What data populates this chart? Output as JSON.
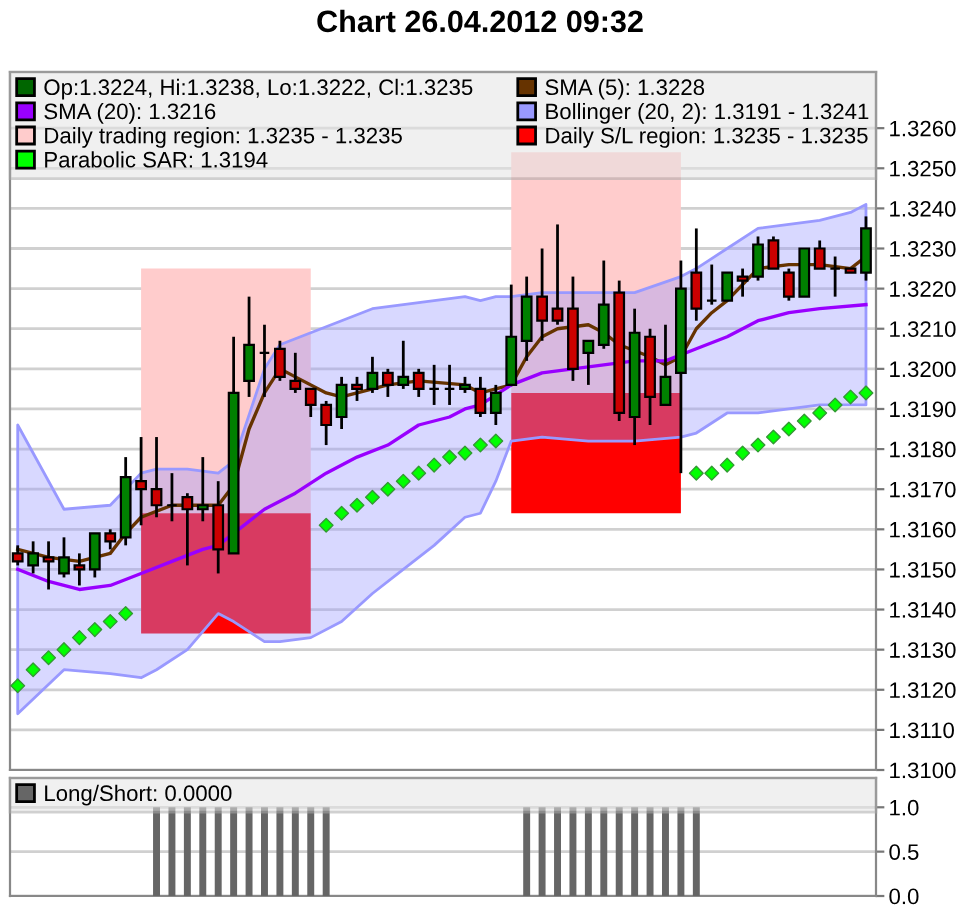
{
  "chart_data": [
    {
      "type": "candlestick",
      "title": "Chart 26.04.2012 09:32",
      "categories": [
        null,
        null,
        null,
        null,
        null,
        null,
        null,
        null,
        null,
        null,
        null,
        null,
        null,
        null,
        null,
        null,
        null,
        null,
        null,
        null,
        null,
        null,
        null,
        null,
        null,
        null,
        null,
        null,
        null,
        null,
        null,
        null,
        null,
        null,
        null,
        null,
        null,
        null,
        null,
        null,
        null,
        null,
        null,
        null,
        null,
        null,
        null,
        null,
        null,
        null,
        null,
        null,
        null,
        null,
        null,
        null
      ],
      "series": [
        {
          "name": "Op:1.3224, Hi:1.3238, Lo:1.3222, Cl:1.3235",
          "type": "candlestick",
          "color": "#006600",
          "colors": [
            "#cc0000",
            "#008000",
            "#cc0000",
            "#008000",
            "#cc0000",
            "#008000",
            "#cc0000",
            "#008000",
            "#cc0000",
            "#cc0000",
            "#000000",
            "#cc0000",
            "#008000",
            "#cc0000",
            "#008000",
            "#008000",
            "#000000",
            "#cc0000",
            "#cc0000",
            "#cc0000",
            "#cc0000",
            "#008000",
            "#cc0000",
            "#008000",
            "#cc0000",
            "#008000",
            "#cc0000",
            "#000000",
            "#000000",
            "#008000",
            "#cc0000",
            "#008000",
            "#008000",
            "#008000",
            "#cc0000",
            "#cc0000",
            "#cc0000",
            "#008000",
            "#008000",
            "#cc0000",
            "#008000",
            "#cc0000",
            "#008000",
            "#008000",
            "#cc0000",
            "#000000",
            "#008000",
            "#cc0000",
            "#008000",
            "#cc0000",
            "#cc0000",
            "#008000",
            "#cc0000",
            "#000000",
            "#cc0000",
            "#008000"
          ],
          "ohlc": [
            [
              1.3154,
              1.3156,
              1.3151,
              1.3152
            ],
            [
              1.3151,
              1.3157,
              1.3149,
              1.3154
            ],
            [
              1.3153,
              1.3157,
              1.3145,
              1.3152
            ],
            [
              1.3149,
              1.3158,
              1.3148,
              1.3153
            ],
            [
              1.3151,
              1.3154,
              1.3146,
              1.315
            ],
            [
              1.315,
              1.3159,
              1.3148,
              1.3159
            ],
            [
              1.3159,
              1.316,
              1.3155,
              1.3157
            ],
            [
              1.3158,
              1.3178,
              1.3156,
              1.3173
            ],
            [
              1.3172,
              1.3183,
              1.3161,
              1.317
            ],
            [
              1.317,
              1.3183,
              1.3163,
              1.3166
            ],
            [
              1.3166,
              1.3174,
              1.3162,
              1.3166
            ],
            [
              1.3168,
              1.3169,
              1.3151,
              1.3165
            ],
            [
              1.3165,
              1.3178,
              1.3162,
              1.3166
            ],
            [
              1.3166,
              1.3172,
              1.3149,
              1.3155
            ],
            [
              1.3154,
              1.3208,
              1.3154,
              1.3194
            ],
            [
              1.3197,
              1.3218,
              1.3193,
              1.3206
            ],
            [
              1.3204,
              1.3211,
              1.3193,
              1.3204
            ],
            [
              1.3205,
              1.3207,
              1.3197,
              1.3198
            ],
            [
              1.3197,
              1.3204,
              1.3194,
              1.3195
            ],
            [
              1.3195,
              1.3195,
              1.3188,
              1.3191
            ],
            [
              1.3191,
              1.3192,
              1.3181,
              1.3186
            ],
            [
              1.3188,
              1.3198,
              1.3185,
              1.3196
            ],
            [
              1.3196,
              1.3198,
              1.3192,
              1.3195
            ],
            [
              1.3195,
              1.3203,
              1.3194,
              1.3199
            ],
            [
              1.3199,
              1.32,
              1.3193,
              1.3196
            ],
            [
              1.3196,
              1.3207,
              1.3195,
              1.3198
            ],
            [
              1.3199,
              1.32,
              1.3193,
              1.3195
            ],
            [
              1.3195,
              1.3201,
              1.3191,
              1.3195
            ],
            [
              1.3195,
              1.3201,
              1.3191,
              1.3195
            ],
            [
              1.3195,
              1.3198,
              1.3194,
              1.3196
            ],
            [
              1.3195,
              1.3198,
              1.3188,
              1.3189
            ],
            [
              1.3189,
              1.3196,
              1.3186,
              1.3194
            ],
            [
              1.3196,
              1.3221,
              1.3196,
              1.3208
            ],
            [
              1.3207,
              1.3223,
              1.3202,
              1.3218
            ],
            [
              1.3218,
              1.323,
              1.3207,
              1.3212
            ],
            [
              1.3215,
              1.3236,
              1.3211,
              1.3212
            ],
            [
              1.3215,
              1.3223,
              1.3197,
              1.32
            ],
            [
              1.3204,
              1.3207,
              1.3196,
              1.3207
            ],
            [
              1.3206,
              1.3227,
              1.3205,
              1.3216
            ],
            [
              1.3219,
              1.3222,
              1.3187,
              1.3189
            ],
            [
              1.3188,
              1.3215,
              1.3181,
              1.3209
            ],
            [
              1.3208,
              1.321,
              1.3186,
              1.3193
            ],
            [
              1.3191,
              1.3211,
              1.3191,
              1.3198
            ],
            [
              1.3199,
              1.3227,
              1.3174,
              1.322
            ],
            [
              1.3224,
              1.3235,
              1.3212,
              1.3215
            ],
            [
              1.3217,
              1.3226,
              1.3216,
              1.3217
            ],
            [
              1.3217,
              1.3224,
              1.3217,
              1.3224
            ],
            [
              1.3223,
              1.3225,
              1.3218,
              1.3222
            ],
            [
              1.3223,
              1.3233,
              1.3222,
              1.3231
            ],
            [
              1.3232,
              1.3233,
              1.3225,
              1.3225
            ],
            [
              1.3224,
              1.3225,
              1.3217,
              1.3218
            ],
            [
              1.3218,
              1.323,
              1.3218,
              1.323
            ],
            [
              1.323,
              1.3232,
              1.3225,
              1.3225
            ],
            [
              1.3225,
              1.3228,
              1.3218,
              1.3225
            ],
            [
              1.3225,
              1.3225,
              1.3224,
              1.3224
            ],
            [
              1.3224,
              1.3238,
              1.3222,
              1.3235
            ]
          ]
        },
        {
          "name": "SMA (5): 1.3228",
          "type": "line",
          "color": "#663300",
          "values": [
            1.3155,
            null,
            1.3153,
            null,
            1.3152,
            null,
            1.3154,
            1.3159,
            1.3163,
            null,
            1.3166,
            null,
            1.3166,
            1.3166,
            1.3171,
            1.3185,
            1.3194,
            1.32,
            1.3198,
            null,
            1.3194,
            1.3193,
            null,
            1.3195,
            1.3196,
            null,
            1.3197,
            null,
            null,
            1.3196,
            1.3194,
            1.3195,
            1.3196,
            1.3203,
            1.3208,
            1.321,
            null,
            1.3211,
            1.3209,
            1.3206,
            null,
            1.3203,
            1.3201,
            1.3203,
            1.321,
            1.3214,
            1.3217,
            null,
            1.3225,
            null,
            1.3226,
            null,
            1.3226,
            null,
            1.3225,
            1.3228
          ]
        },
        {
          "name": "SMA (20): 1.3216",
          "type": "line",
          "color": "#9900ff",
          "values": [
            1.315,
            null,
            1.3147,
            null,
            1.3145,
            null,
            1.3146,
            null,
            1.3149,
            null,
            1.3152,
            null,
            1.3155,
            1.3156,
            1.3159,
            null,
            1.3165,
            null,
            1.3169,
            null,
            1.3174,
            null,
            1.3178,
            null,
            1.3181,
            null,
            1.3186,
            null,
            1.3188,
            1.319,
            1.3191,
            null,
            1.3196,
            null,
            1.3199,
            null,
            1.32,
            null,
            1.3201,
            null,
            1.3202,
            null,
            1.3202,
            null,
            1.3205,
            null,
            1.3208,
            null,
            1.3212,
            null,
            1.3214,
            null,
            1.3215,
            null,
            null,
            1.3216
          ]
        },
        {
          "name": "Bollinger (20, 2): 1.3191 - 1.3241",
          "type": "area",
          "color": "#9999ff",
          "values": [
            null,
            null,
            null,
            null,
            null,
            null,
            null,
            null,
            null,
            null,
            null,
            null,
            null,
            null,
            null,
            null,
            null,
            null,
            null,
            null,
            null,
            null,
            null,
            null,
            null,
            null,
            null,
            null,
            null,
            null,
            null,
            null,
            null,
            null,
            null,
            null,
            null,
            null,
            null,
            null,
            null,
            null,
            null,
            null,
            null,
            null,
            null,
            null,
            null,
            null,
            null,
            null,
            null,
            null,
            null,
            null
          ],
          "upper": [
            1.3186,
            null,
            null,
            1.3165,
            null,
            null,
            1.3166,
            null,
            1.3174,
            1.3175,
            null,
            1.3175,
            null,
            1.3174,
            1.3177,
            null,
            1.32,
            1.3206,
            null,
            1.3209,
            null,
            1.3212,
            null,
            1.3215,
            null,
            1.3216,
            null,
            1.3217,
            null,
            1.3218,
            1.3217,
            1.3218,
            1.3218,
            null,
            1.3219,
            null,
            null,
            1.3219,
            null,
            null,
            1.3219,
            null,
            null,
            1.3223,
            1.3225,
            null,
            1.323,
            null,
            1.3235,
            null,
            1.3236,
            null,
            1.3237,
            null,
            1.3239,
            1.3241
          ],
          "lower": [
            1.3114,
            null,
            null,
            1.3125,
            null,
            null,
            1.3124,
            null,
            1.3123,
            1.3125,
            null,
            1.313,
            null,
            1.3139,
            1.3137,
            null,
            1.3132,
            1.3132,
            null,
            1.3133,
            null,
            1.3137,
            null,
            1.3144,
            null,
            1.315,
            null,
            1.3156,
            null,
            1.3163,
            1.3164,
            1.3172,
            1.3182,
            null,
            1.3183,
            null,
            null,
            1.3182,
            null,
            null,
            1.3182,
            null,
            null,
            1.3183,
            1.3184,
            null,
            1.3189,
            null,
            1.3189,
            null,
            1.319,
            null,
            1.3191,
            null,
            1.3191,
            1.3191
          ]
        },
        {
          "name": "Daily trading region: 1.3235 - 1.3235",
          "type": "area",
          "color": "#ffcccc",
          "values": [
            null,
            null,
            null,
            null,
            null,
            null,
            null,
            null,
            null,
            null,
            null,
            null,
            null,
            null,
            null,
            null,
            null,
            null,
            null,
            null,
            null,
            null,
            null,
            null,
            null,
            null,
            null,
            null,
            null,
            null,
            null,
            null,
            null,
            null,
            null,
            null,
            null,
            null,
            null,
            null,
            null,
            null,
            null,
            null,
            null,
            null,
            null,
            null,
            null,
            null,
            null,
            null,
            null,
            null,
            null,
            null
          ],
          "upper": [
            null,
            null,
            null,
            null,
            null,
            null,
            null,
            null,
            1.3225,
            1.3225,
            1.3225,
            1.3225,
            1.3225,
            1.3225,
            1.3225,
            1.3225,
            1.3225,
            1.3225,
            1.3225,
            1.3225,
            null,
            null,
            null,
            null,
            null,
            null,
            null,
            null,
            null,
            null,
            null,
            null,
            1.3254,
            1.3254,
            1.3254,
            1.3254,
            1.3254,
            1.3254,
            1.3254,
            1.3254,
            1.3254,
            1.3254,
            1.3254,
            1.3254,
            null,
            null,
            null,
            null,
            null,
            null,
            null,
            null,
            null,
            null,
            null,
            null
          ],
          "lower": [
            null,
            null,
            null,
            null,
            null,
            null,
            null,
            null,
            1.3164,
            1.3164,
            1.3164,
            1.3164,
            1.3164,
            1.3164,
            1.3164,
            1.3164,
            1.3164,
            1.3164,
            1.3164,
            1.3164,
            null,
            null,
            null,
            null,
            null,
            null,
            null,
            null,
            null,
            null,
            null,
            null,
            1.3194,
            1.3194,
            1.3194,
            1.3194,
            1.3194,
            1.3194,
            1.3194,
            1.3194,
            1.3194,
            1.3194,
            1.3194,
            1.3194,
            null,
            null,
            null,
            null,
            null,
            null,
            null,
            null,
            null,
            null,
            null,
            null
          ]
        },
        {
          "name": "Daily S/L region: 1.3235 - 1.3235",
          "type": "area",
          "color": "#ff0000",
          "values": [
            null,
            null,
            null,
            null,
            null,
            null,
            null,
            null,
            null,
            null,
            null,
            null,
            null,
            null,
            null,
            null,
            null,
            null,
            null,
            null,
            null,
            null,
            null,
            null,
            null,
            null,
            null,
            null,
            null,
            null,
            null,
            null,
            null,
            null,
            null,
            null,
            null,
            null,
            null,
            null,
            null,
            null,
            null,
            null,
            null,
            null,
            null,
            null,
            null,
            null,
            null,
            null,
            null,
            null,
            null,
            null
          ],
          "upper": [
            null,
            null,
            null,
            null,
            null,
            null,
            null,
            null,
            1.3164,
            1.3164,
            1.3164,
            1.3164,
            1.3164,
            1.3164,
            1.3164,
            1.3164,
            1.3164,
            1.3164,
            1.3164,
            1.3164,
            null,
            null,
            null,
            null,
            null,
            null,
            null,
            null,
            null,
            null,
            null,
            null,
            1.3194,
            1.3194,
            1.3194,
            1.3194,
            1.3194,
            1.3194,
            1.3194,
            1.3194,
            1.3194,
            1.3194,
            1.3194,
            1.3194,
            null,
            null,
            null,
            null,
            null,
            null,
            null,
            null,
            null,
            null,
            null,
            null
          ],
          "lower": [
            null,
            null,
            null,
            null,
            null,
            null,
            null,
            null,
            1.3134,
            1.3134,
            1.3134,
            1.3134,
            1.3134,
            1.3134,
            1.3134,
            1.3134,
            1.3134,
            1.3134,
            1.3134,
            1.3134,
            null,
            null,
            null,
            null,
            null,
            null,
            null,
            null,
            null,
            null,
            null,
            null,
            1.3164,
            1.3164,
            1.3164,
            1.3164,
            1.3164,
            1.3164,
            1.3164,
            1.3164,
            1.3164,
            1.3164,
            1.3164,
            1.3164,
            null,
            null,
            null,
            null,
            null,
            null,
            null,
            null,
            null,
            null,
            null,
            null
          ]
        },
        {
          "name": "Parabolic SAR: 1.3194",
          "type": "scatter",
          "color": "#00ff00",
          "marker": "diamond",
          "values": [
            1.3121,
            1.3125,
            1.3128,
            1.313,
            1.3133,
            1.3135,
            1.3137,
            1.3139,
            null,
            null,
            null,
            null,
            null,
            null,
            null,
            null,
            null,
            null,
            null,
            null,
            1.3161,
            1.3164,
            1.3166,
            1.3168,
            1.317,
            1.3172,
            1.3174,
            1.3176,
            1.3178,
            1.3179,
            1.3181,
            1.3182,
            null,
            null,
            null,
            null,
            null,
            null,
            null,
            null,
            null,
            null,
            null,
            null,
            1.3174,
            1.3174,
            1.3176,
            1.3179,
            1.3181,
            1.3183,
            1.3185,
            1.3187,
            1.3189,
            1.3191,
            1.3193,
            1.3194
          ]
        }
      ],
      "ylim": [
        1.31,
        1.3274
      ],
      "yticks": [
        {
          "value": 1.31,
          "label": "1.3100"
        },
        {
          "value": 1.311,
          "label": "1.3110"
        },
        {
          "value": 1.312,
          "label": "1.3120"
        },
        {
          "value": 1.313,
          "label": "1.3130"
        },
        {
          "value": 1.314,
          "label": "1.3140"
        },
        {
          "value": 1.315,
          "label": "1.3150"
        },
        {
          "value": 1.316,
          "label": "1.3160"
        },
        {
          "value": 1.317,
          "label": "1.3170"
        },
        {
          "value": 1.318,
          "label": "1.3180"
        },
        {
          "value": 1.319,
          "label": "1.3190"
        },
        {
          "value": 1.32,
          "label": "1.3200"
        },
        {
          "value": 1.321,
          "label": "1.3210"
        },
        {
          "value": 1.322,
          "label": "1.3220"
        },
        {
          "value": 1.323,
          "label": "1.3230"
        },
        {
          "value": 1.324,
          "label": "1.3240"
        },
        {
          "value": 1.325,
          "label": "1.3250"
        },
        {
          "value": 1.326,
          "label": "1.3260"
        }
      ],
      "grid": "y",
      "legend": "top",
      "tick_labels": "y"
    },
    {
      "type": "bar",
      "categories": [
        null,
        null,
        null,
        null,
        null,
        null,
        null,
        null,
        null,
        null,
        null,
        null,
        null,
        null,
        null,
        null,
        null,
        null,
        null,
        null,
        null,
        null,
        null,
        null,
        null,
        null,
        null,
        null,
        null,
        null,
        null,
        null,
        null,
        null,
        null,
        null,
        null,
        null,
        null,
        null,
        null,
        null,
        null,
        null,
        null,
        null,
        null,
        null,
        null,
        null,
        null,
        null,
        null,
        null,
        null,
        null
      ],
      "series": [
        {
          "name": "Long/Short: 0.0000",
          "color": "#666666",
          "values": [
            0,
            0,
            0,
            0,
            0,
            0,
            0,
            0,
            0,
            1,
            1,
            1,
            1,
            1,
            1,
            1,
            1,
            1,
            1,
            1,
            1,
            0,
            0,
            0,
            0,
            0,
            0,
            0,
            0,
            0,
            0,
            0,
            0,
            1,
            1,
            1,
            1,
            1,
            1,
            1,
            1,
            1,
            1,
            1,
            1,
            0,
            0,
            0,
            0,
            0,
            0,
            0,
            0,
            0,
            0,
            0
          ]
        }
      ],
      "ylim": [
        0,
        1.33
      ],
      "yticks": [
        {
          "value": 0,
          "label": "0.0"
        },
        {
          "value": 0.5,
          "label": "0.5"
        },
        {
          "value": 1,
          "label": "1.0"
        }
      ],
      "grid": "y",
      "legend": "top",
      "tick_labels": "y"
    }
  ]
}
